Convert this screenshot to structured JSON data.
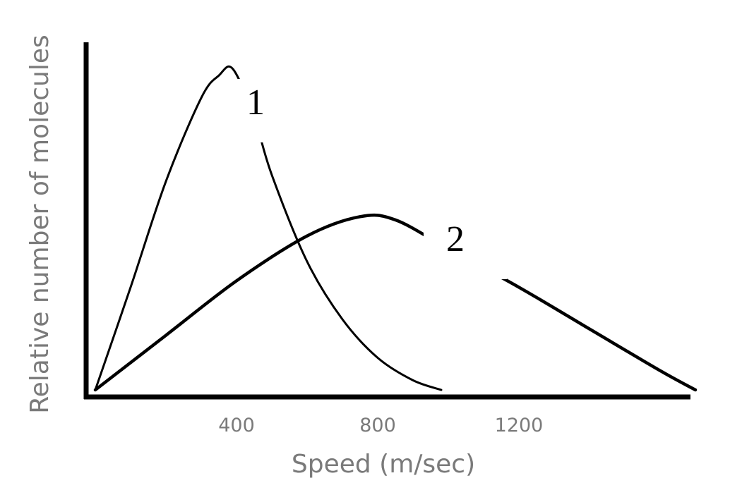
{
  "chart_data": {
    "type": "line",
    "xlabel": "Speed (m/sec)",
    "ylabel": "Relative number of molecules",
    "x_ticks": [
      400,
      800,
      1200
    ],
    "xlim": [
      0,
      1750
    ],
    "ylim": [
      0,
      1
    ],
    "grid": false,
    "legend": "none",
    "series": [
      {
        "name": "1",
        "color": "#000000",
        "x": [
          0,
          100,
          200,
          300,
          350,
          390,
          450,
          500,
          600,
          700,
          800,
          900,
          980
        ],
        "y": [
          0,
          0.32,
          0.65,
          0.91,
          0.98,
          1.0,
          0.85,
          0.67,
          0.4,
          0.22,
          0.1,
          0.03,
          0.0
        ]
      },
      {
        "name": "2",
        "color": "#000000",
        "x": [
          0,
          200,
          400,
          600,
          750,
          850,
          1000,
          1200,
          1400,
          1600,
          1700
        ],
        "y": [
          0,
          0.17,
          0.34,
          0.48,
          0.54,
          0.53,
          0.44,
          0.32,
          0.19,
          0.06,
          0.0
        ]
      }
    ]
  }
}
